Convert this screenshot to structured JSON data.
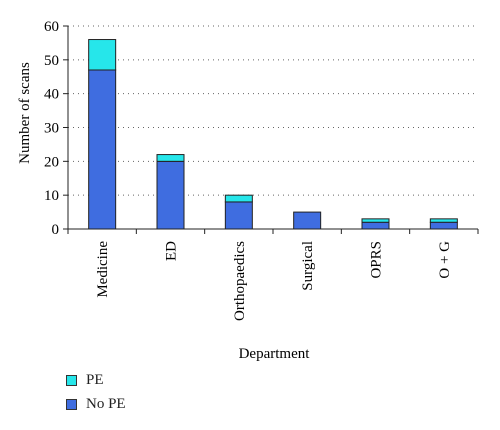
{
  "chart_data": {
    "type": "bar",
    "stacked": true,
    "categories": [
      "Medicine",
      "ED",
      "Orthopaedics",
      "Surgical",
      "OPRS",
      "O + G"
    ],
    "series": [
      {
        "name": "No PE",
        "values": [
          47,
          20,
          8,
          5,
          2,
          2
        ],
        "color": "#3f6de0"
      },
      {
        "name": "PE",
        "values": [
          9,
          2,
          2,
          0,
          1,
          1
        ],
        "color": "#26e6ea"
      }
    ],
    "xlabel": "Department",
    "ylabel": "Number of scans",
    "ylim": [
      0,
      60
    ],
    "yticks": [
      0,
      10,
      20,
      30,
      40,
      50,
      60
    ],
    "grid": "horizontal-dotted",
    "legend_position": "bottom-left"
  },
  "legend": {
    "items": [
      {
        "label": "PE",
        "color": "#26e6ea"
      },
      {
        "label": "No PE",
        "color": "#3f6de0"
      }
    ]
  }
}
